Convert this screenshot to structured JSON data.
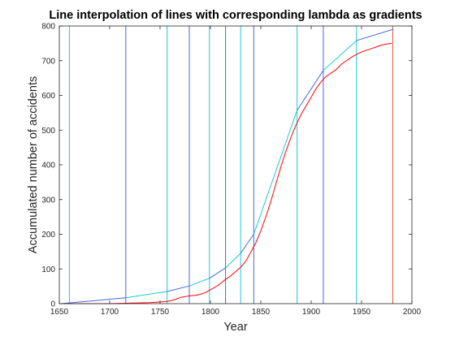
{
  "chart_data": {
    "type": "line",
    "title": "Line interpolation of lines with corresponding lambda as gradients",
    "xlabel": "Year",
    "ylabel": "Accumulated number of accidents",
    "xlim": [
      1650,
      2000
    ],
    "ylim": [
      0,
      800
    ],
    "xticks": [
      1650,
      1700,
      1750,
      1800,
      1850,
      1900,
      1950,
      2000
    ],
    "yticks": [
      0,
      100,
      200,
      300,
      400,
      500,
      600,
      700,
      800
    ],
    "grid": false,
    "legend": "none",
    "series": [
      {
        "kind": "cumulative-data",
        "color": "#ff0000",
        "x": [
          1652,
          1700,
          1740,
          1755,
          1760,
          1765,
          1770,
          1778,
          1785,
          1790,
          1795,
          1800,
          1805,
          1810,
          1815,
          1820,
          1825,
          1830,
          1835,
          1840,
          1845,
          1850,
          1855,
          1860,
          1865,
          1870,
          1875,
          1880,
          1885,
          1890,
          1895,
          1900,
          1905,
          1910,
          1915,
          1920,
          1925,
          1930,
          1935,
          1940,
          1945,
          1950,
          1955,
          1960,
          1965,
          1970,
          1975,
          1980
        ],
        "y": [
          0,
          0,
          3,
          6,
          8,
          12,
          18,
          22,
          24,
          27,
          32,
          40,
          48,
          58,
          70,
          80,
          92,
          105,
          122,
          148,
          175,
          210,
          250,
          295,
          345,
          395,
          440,
          480,
          515,
          545,
          570,
          595,
          620,
          640,
          655,
          665,
          675,
          690,
          700,
          710,
          718,
          725,
          730,
          735,
          740,
          745,
          748,
          750
        ]
      },
      {
        "kind": "interpolation",
        "color_segments": [
          "#4169e1",
          "#1ec8d8"
        ],
        "x": [
          1652,
          1716,
          1757,
          1779,
          1799,
          1815,
          1830,
          1843,
          1886,
          1912,
          1945,
          1981
        ],
        "y": [
          0,
          17,
          35,
          51,
          73,
          103,
          145,
          200,
          557,
          672,
          758,
          790
        ]
      }
    ],
    "vertical_lines": [
      {
        "x": 1660,
        "color": "#1ec8d8"
      },
      {
        "x": 1716,
        "color": "#4169e1"
      },
      {
        "x": 1757,
        "color": "#1ec8d8"
      },
      {
        "x": 1779,
        "color": "#4169e1"
      },
      {
        "x": 1799,
        "color": "#1ec8d8"
      },
      {
        "x": 1815,
        "color": "#4169e1"
      },
      {
        "x": 1830,
        "color": "#1ec8d8"
      },
      {
        "x": 1843,
        "color": "#4169e1"
      },
      {
        "x": 1886,
        "color": "#1ec8d8"
      },
      {
        "x": 1912,
        "color": "#4169e1"
      },
      {
        "x": 1945,
        "color": "#1ec8d8"
      },
      {
        "x": 1981,
        "color": "#e0503c"
      }
    ]
  }
}
